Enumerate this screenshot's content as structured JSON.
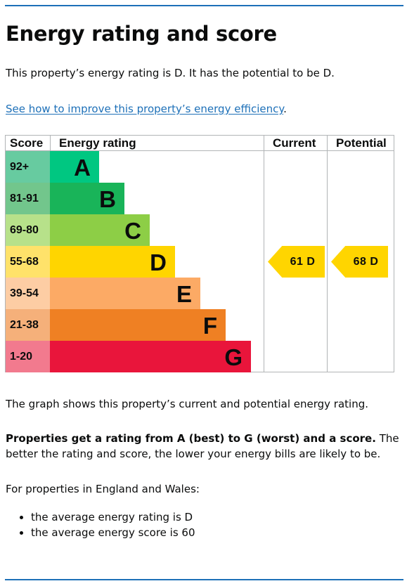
{
  "page": {
    "title": "Energy rating and score",
    "intro": "This property’s energy rating is D. It has the potential to be D.",
    "improve_link": "See how to improve this property’s energy efficiency",
    "improve_link_suffix": ".",
    "graph_note": "The graph shows this property’s current and potential energy rating.",
    "ratings_bold": "Properties get a rating from A (best) to G (worst) and a score.",
    "ratings_rest": " The better the rating and score, the lower your energy bills are likely to be.",
    "region_intro": "For properties in England and Wales:",
    "averages": [
      "the average energy rating is D",
      "the average energy score is 60"
    ]
  },
  "chart_data": {
    "type": "table",
    "headers": {
      "score": "Score",
      "rating": "Energy rating",
      "current": "Current",
      "potential": "Potential"
    },
    "bands": [
      {
        "score": "92+",
        "letter": "A",
        "color": "#00c781",
        "score_bg": "#67cba0"
      },
      {
        "score": "81-91",
        "letter": "B",
        "color": "#19b459",
        "score_bg": "#72c68c"
      },
      {
        "score": "69-80",
        "letter": "C",
        "color": "#8dce46",
        "score_bg": "#b7e18a"
      },
      {
        "score": "55-68",
        "letter": "D",
        "color": "#ffd500",
        "score_bg": "#ffe26a"
      },
      {
        "score": "39-54",
        "letter": "E",
        "color": "#fcaa65",
        "score_bg": "#fdcda4"
      },
      {
        "score": "21-38",
        "letter": "F",
        "color": "#ef8023",
        "score_bg": "#f5b07a"
      },
      {
        "score": "1-20",
        "letter": "G",
        "color": "#e9153b",
        "score_bg": "#f27a8e"
      }
    ],
    "current": {
      "label": "61  D",
      "score": 61,
      "band": "D"
    },
    "potential": {
      "label": "68  D",
      "score": 68,
      "band": "D"
    }
  }
}
